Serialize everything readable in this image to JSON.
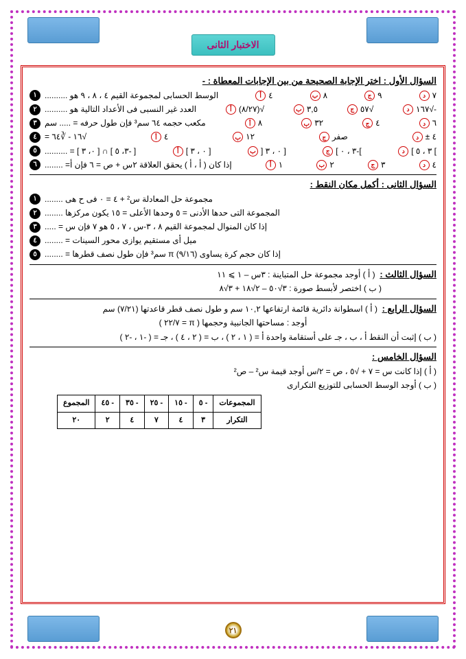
{
  "colors": {
    "accent": "#d00000",
    "dots": "#c030c0",
    "tab": "#5a9dd4",
    "title_bg": "#3cc0c0",
    "title_fg": "#b01070"
  },
  "header": {
    "title": "الاختبار الثانى"
  },
  "page_number": "٢١",
  "q1": {
    "title": "السؤال الأول : اختر الإجابة الصحيحة من بين الإجابات المعطاة : -",
    "items": [
      {
        "n": "١",
        "text": "الوسط الحسابى لمجموعة القيم ٤ ، ٨ ، ٩ هو ..........",
        "opts": [
          "٤",
          "٨",
          "٩",
          "٧"
        ]
      },
      {
        "n": "٢",
        "text": "العدد غير النسبى فى الأعداد التالية هو ..........",
        "opts": [
          "√(٨/٢٧)",
          "٣,٥",
          "√٥٧",
          "-√١٦٧"
        ]
      },
      {
        "n": "٣",
        "text": "مكعب حجمه ٦٤ سم³ فإن طول حرفه = ..... سم",
        "opts": [
          "٨",
          "٣٢",
          "٤",
          "٦"
        ]
      },
      {
        "n": "٤",
        "text": "√١٦ - ∛٦٤ =",
        "opts": [
          "٤",
          "١٢",
          "صفر",
          "٤ ±"
        ]
      },
      {
        "n": "٥",
        "text": "[ -٣، ٥ ] ∩ [ ٠، ٣ ] = ..........",
        "opts": [
          "[ ٠ ، ٣ ]",
          "[ ٠ ، ٣ [",
          "]-٣ ، ٠ ]",
          "] ٣ ، ٥ ]"
        ]
      },
      {
        "n": "٦",
        "text": "إذا كان ( أ ، أ ) يحقق العلاقة ٢س + ص = ٦ فإن أ= ........",
        "opts": [
          "١",
          "٢",
          "٣",
          "٤"
        ]
      }
    ],
    "marks": [
      "أ",
      "ب",
      "ج",
      "د"
    ]
  },
  "q2": {
    "title": "السؤال الثانى : أكمل مكان النقط :",
    "items": [
      {
        "n": "١",
        "text": "مجموعة حل المعادلة س² + ٤ = ٠ فى ح هى ........"
      },
      {
        "n": "٢",
        "text": "المجموعة التى حدها الأدنى = ٥ وحدها الأعلى = ١٥ يكون مركزها ........"
      },
      {
        "n": "٣",
        "text": "إذا كان المنوال لمجموعة القيم ٨ ، ٣-س ، ٧ ، ٥ هو ٧ فإن س = ....."
      },
      {
        "n": "٤",
        "text": "ميل أى مستقيم يوازى محور السينات = ........"
      },
      {
        "n": "٥",
        "text": "إذا كان حجم كرة يساوى (٩/١٦) π سم³ فإن طول نصف قطرها = ........"
      }
    ]
  },
  "q3": {
    "title": "السؤال الثالث :",
    "a": "( أ ) أوجد مجموعة حل المتباينة :    ٣س – ١ ⩾ ١١",
    "b": "( ب ) اختصر لأبسط صورة :  ٣√٥٠ – ٢√١٨ + ٣√٨"
  },
  "q4": {
    "title": "السؤال الرابع :",
    "a": "( أ ) اسطوانة دائرية قائمة ارتفاعها ١٠,٢ سم و طول نصف قطر قاعدتها (٧/٢١) سم",
    "a2": "أوجد : مساحتها الجانبية وحجمها ( π = ٢٢/٧ )",
    "b": "( ب ) إثبت أن النقط أ ، ب ، جـ على أستقامة واحدة  أ = ( ١ ، ٢ ) ، ب = ( ٢ ، ٤ ) ، جـ = ( -١ ، -٢ )"
  },
  "q5": {
    "title": "السؤال الخامس :",
    "a": "( أ ) إذا كانت س = ٧ + √٥ ، ص = ٢/س     أوجد قيمة  س² – ص²",
    "b": "( ب ) أوجد الوسط الحسابى للتوزيع التكرارى",
    "table": {
      "head": [
        "المجموعات",
        "- ٥",
        "- ١٥",
        "- ٢٥",
        "- ٣٥",
        "- ٤٥",
        "المجموع"
      ],
      "row": [
        "التكرار",
        "٣",
        "٤",
        "٧",
        "٤",
        "٢",
        "٢٠"
      ]
    }
  }
}
